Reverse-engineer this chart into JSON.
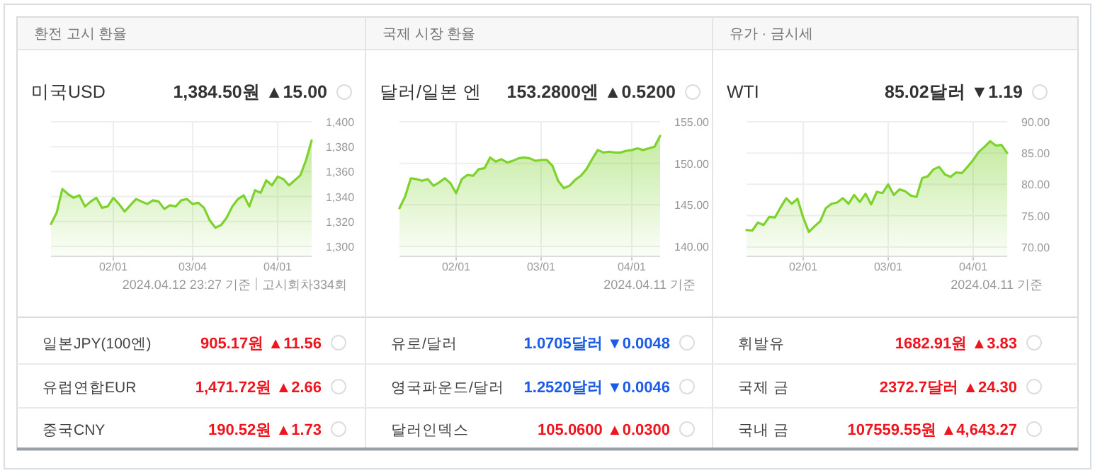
{
  "chart_data": [
    {
      "type": "area",
      "title": "환전 고시 환율",
      "subtitle": "미국USD",
      "color": "#7dd22c",
      "grid": true,
      "annotations": [
        "1,384.50원 ▲15.00",
        "2024.04.12 23:27 기준",
        "고시회차334회"
      ],
      "categories": [
        null,
        null,
        null,
        null,
        null,
        null,
        null,
        null,
        null,
        null,
        null,
        "02/01",
        null,
        null,
        null,
        null,
        null,
        null,
        null,
        null,
        null,
        null,
        null,
        null,
        null,
        "03/04",
        null,
        null,
        null,
        null,
        null,
        null,
        null,
        null,
        null,
        null,
        null,
        null,
        null,
        null,
        "04/01",
        null,
        null,
        null,
        null,
        null,
        null
      ],
      "values": [
        1318,
        1327,
        1346,
        1342,
        1339,
        1341,
        1332,
        1336,
        1339,
        1331,
        1332,
        1339,
        1334,
        1328,
        1333,
        1338,
        1336,
        1334,
        1337,
        1336,
        1330,
        1333,
        1332,
        1337,
        1338,
        1334,
        1335,
        1331,
        1321,
        1315,
        1317,
        1323,
        1332,
        1338,
        1341,
        1332,
        1345,
        1343,
        1353,
        1349,
        1356,
        1354,
        1349,
        1353,
        1357,
        1369,
        1385
      ],
      "ylim": [
        1292,
        1400
      ],
      "yticks": [
        {
          "value": 1300,
          "label": "1,300"
        },
        {
          "value": 1320,
          "label": "1,320"
        },
        {
          "value": 1340,
          "label": "1,340"
        },
        {
          "value": 1360,
          "label": "1,360"
        },
        {
          "value": 1380,
          "label": "1,380"
        },
        {
          "value": 1400,
          "label": "1,400"
        }
      ]
    },
    {
      "type": "area",
      "title": "국제 시장 환율",
      "subtitle": "달러/일본 엔",
      "color": "#7dd22c",
      "grid": true,
      "annotations": [
        "153.2800엔 ▲0.5200",
        "2024.04.11 기준"
      ],
      "categories": [
        null,
        null,
        null,
        null,
        null,
        null,
        null,
        null,
        null,
        null,
        "02/01",
        null,
        null,
        null,
        null,
        null,
        null,
        null,
        null,
        null,
        null,
        null,
        null,
        null,
        null,
        "03/01",
        null,
        null,
        null,
        null,
        null,
        null,
        null,
        null,
        null,
        null,
        null,
        null,
        null,
        null,
        null,
        "04/01",
        null,
        null,
        null,
        null,
        null
      ],
      "values": [
        144.6,
        146.0,
        148.2,
        148.1,
        147.9,
        148.1,
        147.3,
        147.7,
        148.2,
        147.6,
        146.4,
        148.1,
        148.6,
        148.5,
        149.3,
        149.4,
        150.7,
        150.2,
        150.5,
        150.1,
        150.3,
        150.6,
        150.7,
        150.6,
        150.3,
        150.4,
        150.4,
        149.7,
        147.9,
        147.0,
        147.3,
        148.0,
        148.5,
        149.3,
        150.5,
        151.6,
        151.3,
        151.4,
        151.3,
        151.3,
        151.5,
        151.6,
        151.8,
        151.6,
        151.8,
        152.0,
        153.3
      ],
      "ylim": [
        138.8,
        155
      ],
      "yticks": [
        {
          "value": 140,
          "label": "140.00"
        },
        {
          "value": 145,
          "label": "145.00"
        },
        {
          "value": 150,
          "label": "150.00"
        },
        {
          "value": 155,
          "label": "155.00"
        }
      ]
    },
    {
      "type": "area",
      "title": "유가 · 금시세",
      "subtitle": "WTI",
      "color": "#7dd22c",
      "grid": true,
      "annotations": [
        "85.02달러 ▼1.19",
        "2024.04.11 기준"
      ],
      "categories": [
        null,
        null,
        null,
        null,
        null,
        null,
        null,
        null,
        null,
        null,
        "02/01",
        null,
        null,
        null,
        null,
        null,
        null,
        null,
        null,
        null,
        null,
        null,
        null,
        null,
        null,
        "03/01",
        null,
        null,
        null,
        null,
        null,
        null,
        null,
        null,
        null,
        null,
        null,
        null,
        null,
        null,
        "04/01",
        null,
        null,
        null,
        null,
        null,
        null
      ],
      "values": [
        72.7,
        72.6,
        73.9,
        73.5,
        74.8,
        74.7,
        76.3,
        77.8,
        76.9,
        77.7,
        74.7,
        72.4,
        73.3,
        74.1,
        76.2,
        76.9,
        77.1,
        77.8,
        76.9,
        78.3,
        77.2,
        78.5,
        76.8,
        78.8,
        78.6,
        80.0,
        78.3,
        79.2,
        78.9,
        78.2,
        78.0,
        81.0,
        81.3,
        82.4,
        82.8,
        81.6,
        81.2,
        81.9,
        81.8,
        82.8,
        83.9,
        85.2,
        86.0,
        86.9,
        86.2,
        86.3,
        85.0
      ],
      "ylim": [
        68.5,
        90
      ],
      "yticks": [
        {
          "value": 70,
          "label": "70.00"
        },
        {
          "value": 75,
          "label": "75.00"
        },
        {
          "value": 80,
          "label": "80.00"
        },
        {
          "value": 85,
          "label": "85.00"
        },
        {
          "value": 90,
          "label": "90.00"
        }
      ]
    },
    {
      "type": "other",
      "annotations": [
        "일본JPY(100엔)",
        "905.17원 ▲11.56",
        "유로/달러",
        "1.0705달러 ▼0.0048",
        "휘발유",
        "1682.91원 ▲3.83",
        "유럽연합EUR",
        "1,471.72원 ▲2.66",
        "영국파운드/달러",
        "1.2520달러 ▼0.0046",
        "국제 금",
        "2372.7달러 ▲24.30",
        "중국CNY",
        "190.52원 ▲1.73",
        "달러인덱스",
        "105.0600 ▲0.0300",
        "국내 금",
        "107559.55원 ▲4,643.27"
      ],
      "colors": [
        "#f0141e",
        "#1a5ce8",
        "#f0141e",
        "#f0141e",
        "#1a5ce8",
        "#f0141e",
        "#f0141e",
        "#f0141e",
        "#f0141e"
      ]
    }
  ]
}
